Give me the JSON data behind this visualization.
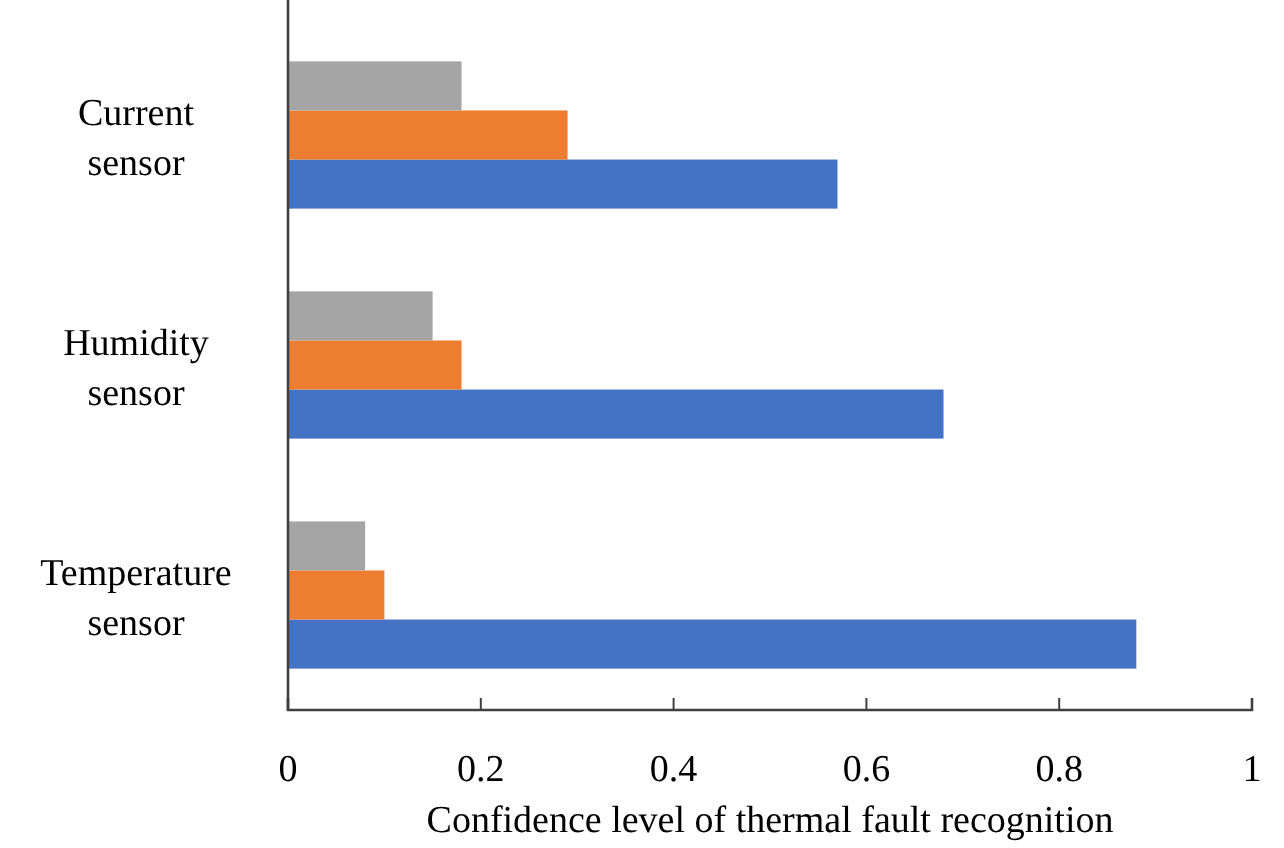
{
  "chart_data": {
    "type": "bar",
    "orientation": "horizontal",
    "xlabel": "Confidence level of thermal fault recognition",
    "categories": [
      "Current sensor",
      "Humidity sensor",
      "Temperature sensor"
    ],
    "series": [
      {
        "color": "#4472c4",
        "values": [
          0.57,
          0.68,
          0.88
        ]
      },
      {
        "color": "#ed7d31",
        "values": [
          0.29,
          0.18,
          0.1
        ]
      },
      {
        "color": "#a5a5a5",
        "values": [
          0.18,
          0.15,
          0.08
        ]
      }
    ],
    "xlim": [
      0,
      1
    ],
    "xticks": [
      0,
      0.2,
      0.4,
      0.6,
      0.8,
      1
    ],
    "grid": false
  }
}
